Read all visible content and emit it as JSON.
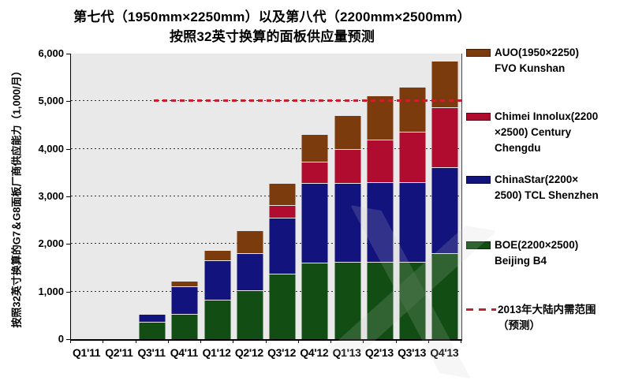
{
  "title": {
    "line1": "第七代（1950mm×2250mm）以及第八代（2200mm×2500mm）",
    "line2": "按照32英寸换算的面板供应量预测"
  },
  "y_axis": {
    "label": "按照32英寸换算的G7＆G8面板厂商供应能力（1,000/月）",
    "tick_labels": [
      "0",
      "1,000",
      "2,000",
      "3,000",
      "4,000",
      "5,000",
      "6,000"
    ]
  },
  "chart_data": {
    "type": "bar",
    "stacked": true,
    "title": "第七代（1950mm×2250mm）以及第八代（2200mm×2500mm）按照32英寸换算的面板供应量预测",
    "ylabel": "按照32英寸换算的G7＆G8面板厂商供应能力（1,000/月）",
    "xlabel": "",
    "ylim": [
      0,
      6000
    ],
    "ytick_step": 1000,
    "grid": "horizontal-dashed",
    "legend_position": "right",
    "categories": [
      "Q1'11",
      "Q2'11",
      "Q3'11",
      "Q4'11",
      "Q1'12",
      "Q2'12",
      "Q3'12",
      "Q4'12",
      "Q1'13",
      "Q2'13",
      "Q3'13",
      "Q4'13"
    ],
    "series": [
      {
        "name": "BOE(2200×2500) Beijing B4",
        "color": "#124e13",
        "values": [
          0,
          0,
          360,
          530,
          830,
          1030,
          1380,
          1615,
          1630,
          1630,
          1630,
          1800
        ]
      },
      {
        "name": "ChinaStar(2200×2500) TCL Shenzhen",
        "color": "#13137e",
        "values": [
          0,
          0,
          170,
          580,
          820,
          770,
          1165,
          1665,
          1650,
          1665,
          1665,
          1815
        ]
      },
      {
        "name": "Chimei Innolux(2200×2500) Century Chengdu",
        "color": "#b00c30",
        "values": [
          0,
          0,
          0,
          0,
          0,
          0,
          280,
          450,
          715,
          900,
          1065,
          1265
        ]
      },
      {
        "name": "AUO(1950×2250) FVO Kunshan",
        "color": "#7b3b0c",
        "values": [
          0,
          0,
          0,
          110,
          215,
          480,
          450,
          580,
          715,
          930,
          950,
          965
        ]
      }
    ],
    "reference_line": {
      "value": 5000,
      "label": "2013年大陆内需范围（预测）",
      "color": "#cc1f2d",
      "style": "dashed"
    }
  },
  "legend": {
    "items": [
      {
        "type": "box",
        "color": "#7b3b0c",
        "lines": [
          "AUO(1950×2250)",
          "FVO Kunshan"
        ]
      },
      {
        "type": "box",
        "color": "#b00c30",
        "lines": [
          "Chimei Innolux(2200",
          "×2500) Century",
          "Chengdu"
        ]
      },
      {
        "type": "box",
        "color": "#13137e",
        "lines": [
          "ChinaStar(2200×",
          "2500) TCL Shenzhen"
        ]
      },
      {
        "type": "box",
        "color": "#124e13",
        "lines": [
          "BOE(2200×2500)",
          "Beijing B4"
        ]
      },
      {
        "type": "dash",
        "color": "#cc1f2d",
        "lines": [
          "2013年大陆内需范围",
          "（预测）"
        ]
      }
    ]
  }
}
